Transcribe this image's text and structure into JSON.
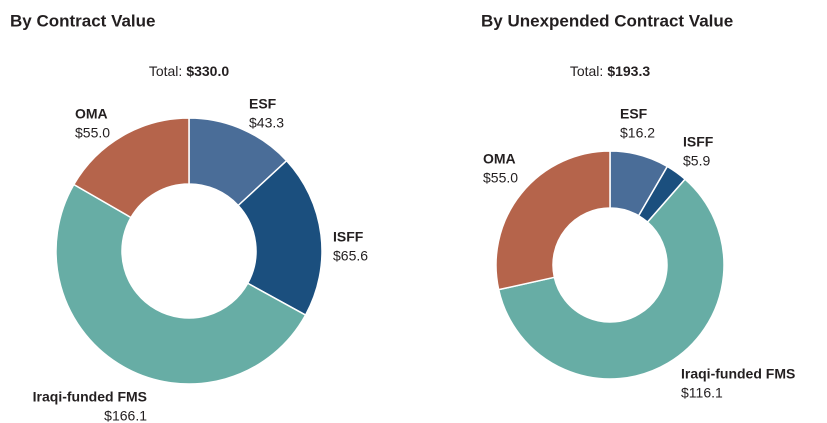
{
  "chart_data": [
    {
      "type": "donut",
      "title": "By Contract Value",
      "total_prefix": "Total:",
      "total": 330.0,
      "total_label": "$330.0",
      "categories": [
        "ESF",
        "ISFF",
        "Iraqi-funded FMS",
        "OMA"
      ],
      "values": [
        43.3,
        65.6,
        166.1,
        55.0
      ],
      "value_labels": [
        "$43.3",
        "$65.6",
        "$166.1",
        "$55.0"
      ],
      "colors": [
        "#4a6d98",
        "#1b4f7e",
        "#67ada5",
        "#b5644b"
      ]
    },
    {
      "type": "donut",
      "title": "By Unexpended Contract Value",
      "total_prefix": "Total:",
      "total": 193.3,
      "total_label": "$193.3",
      "categories": [
        "ESF",
        "ISFF",
        "Iraqi-funded FMS",
        "OMA"
      ],
      "values": [
        16.2,
        5.9,
        116.1,
        55.0
      ],
      "value_labels": [
        "$16.2",
        "$5.9",
        "$116.1",
        "$55.0"
      ],
      "colors": [
        "#4a6d98",
        "#1b4f7e",
        "#67ada5",
        "#b5644b"
      ]
    }
  ]
}
